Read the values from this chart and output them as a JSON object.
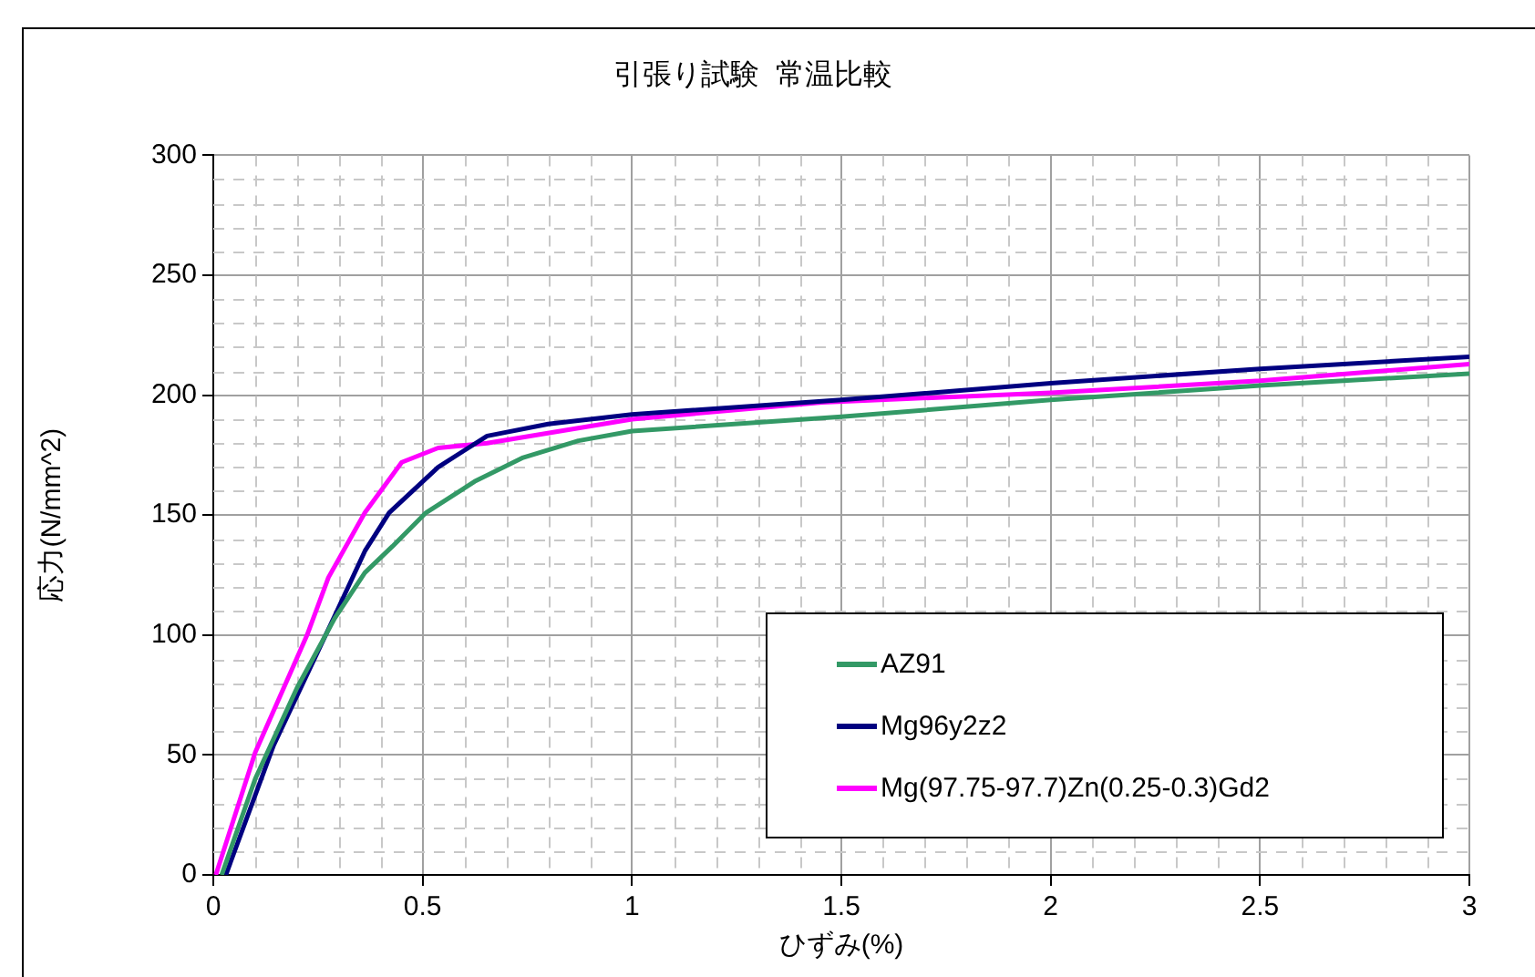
{
  "chart_data": {
    "type": "line",
    "title": "引張り試験  常温比較",
    "xlabel": "ひずみ(%)",
    "ylabel": "応力(N/mm^2)",
    "xlim": [
      0,
      3
    ],
    "xticks": [
      0,
      0.5,
      1,
      1.5,
      2,
      2.5,
      3
    ],
    "ylim": [
      0,
      300
    ],
    "yticks": [
      0,
      50,
      100,
      150,
      200,
      250,
      300
    ],
    "grid": true,
    "legend": "bottom right",
    "series": [
      {
        "name": "AZ91",
        "color": "#339966",
        "x": [
          0.02,
          0.1,
          0.2,
          0.29,
          0.362,
          0.428,
          0.508,
          0.624,
          0.74,
          0.872,
          1.0,
          1.5,
          2.0,
          2.5,
          3.0
        ],
        "values": [
          0,
          40,
          78,
          107,
          126,
          137,
          151,
          164,
          174,
          181,
          185,
          191,
          198,
          204,
          209
        ]
      },
      {
        "name": "Mg96y2z2",
        "color": "#000080",
        "x": [
          0.03,
          0.144,
          0.29,
          0.362,
          0.42,
          0.537,
          0.654,
          0.8,
          1.0,
          1.5,
          2.0,
          2.5,
          3.0
        ],
        "values": [
          0,
          54,
          108,
          135,
          151,
          170,
          183,
          188,
          192,
          198,
          205,
          211,
          216
        ]
      },
      {
        "name": "Mg(97.75-97.7)Zn(0.25-0.3)Gd2",
        "color": "#ff00ff",
        "x": [
          0.006,
          0.1,
          0.224,
          0.275,
          0.362,
          0.45,
          0.537,
          0.654,
          1.0,
          1.454,
          2.0,
          2.5,
          3.0
        ],
        "values": [
          0,
          51,
          100,
          124,
          151,
          172,
          178,
          180,
          190,
          197,
          201,
          206,
          213
        ]
      }
    ]
  }
}
